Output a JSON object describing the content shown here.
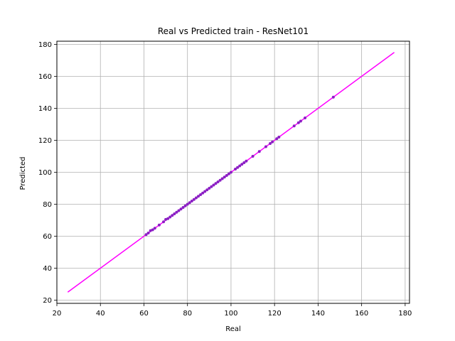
{
  "chart_data": {
    "type": "scatter",
    "title": "Real vs Predicted train - ResNet101",
    "xlabel": "Real",
    "ylabel": "Predicted",
    "xlim": [
      20,
      182
    ],
    "ylim": [
      18,
      182
    ],
    "xticks": [
      20,
      40,
      60,
      80,
      100,
      120,
      140,
      160,
      180
    ],
    "yticks": [
      20,
      40,
      60,
      80,
      100,
      120,
      140,
      160,
      180
    ],
    "grid": true,
    "reference_line": {
      "x": [
        25,
        175
      ],
      "y": [
        25,
        175
      ],
      "color": "#ff00ff"
    },
    "series": [
      {
        "color": "#8b1fc4",
        "points": [
          [
            61,
            61
          ],
          [
            62,
            62
          ],
          [
            63,
            63.5
          ],
          [
            64,
            64
          ],
          [
            65,
            65
          ],
          [
            67,
            67
          ],
          [
            69,
            69
          ],
          [
            70,
            70.5
          ],
          [
            71,
            71
          ],
          [
            72,
            72
          ],
          [
            73,
            73
          ],
          [
            74,
            74
          ],
          [
            75,
            75
          ],
          [
            76,
            76
          ],
          [
            77,
            77
          ],
          [
            78,
            78
          ],
          [
            79,
            79
          ],
          [
            80,
            80
          ],
          [
            81,
            81
          ],
          [
            82,
            82
          ],
          [
            83,
            83
          ],
          [
            84,
            84
          ],
          [
            85,
            85
          ],
          [
            86,
            86
          ],
          [
            87,
            87
          ],
          [
            88,
            88
          ],
          [
            89,
            89
          ],
          [
            90,
            90
          ],
          [
            91,
            91
          ],
          [
            92,
            92
          ],
          [
            93,
            93
          ],
          [
            94,
            94
          ],
          [
            95,
            95
          ],
          [
            96,
            96
          ],
          [
            97,
            97
          ],
          [
            98,
            98
          ],
          [
            99,
            99
          ],
          [
            100,
            100
          ],
          [
            102,
            102
          ],
          [
            103,
            103
          ],
          [
            104,
            104
          ],
          [
            105,
            105
          ],
          [
            106,
            106
          ],
          [
            107,
            107
          ],
          [
            110,
            110
          ],
          [
            113,
            113
          ],
          [
            116,
            116
          ],
          [
            118,
            118
          ],
          [
            119,
            119
          ],
          [
            121,
            121
          ],
          [
            122,
            122
          ],
          [
            129,
            129
          ],
          [
            131,
            131
          ],
          [
            132,
            132
          ],
          [
            134,
            134
          ],
          [
            147,
            147
          ]
        ]
      }
    ]
  }
}
